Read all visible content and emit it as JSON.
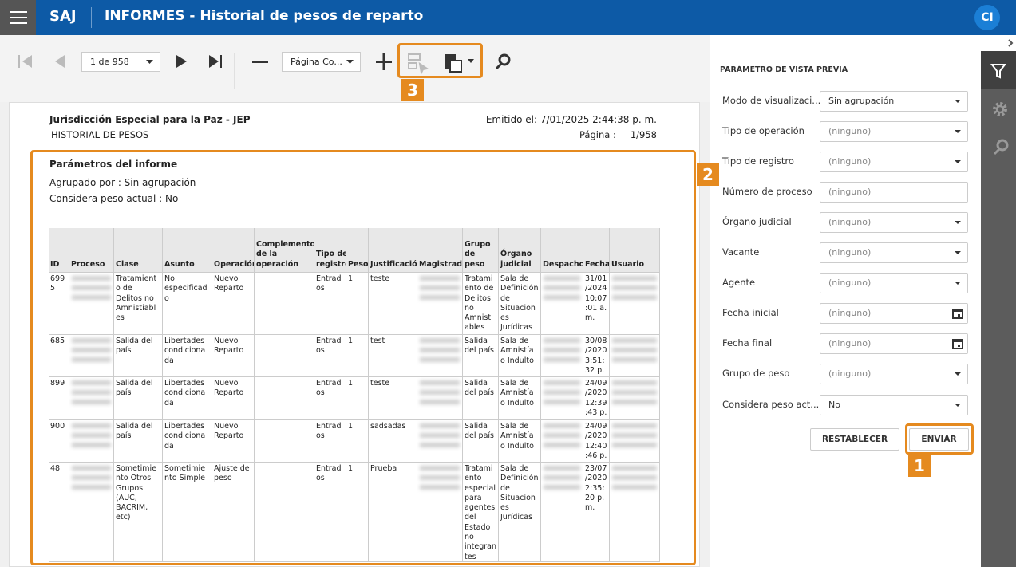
{
  "header": {
    "app": "SAJ",
    "title": "INFORMES - Historial de pesos de reparto",
    "user": "CI"
  },
  "toolbar": {
    "page": "1 de 958",
    "zoom": "Página Co...",
    "callout": "3"
  },
  "report": {
    "organization": "Jurisdicción Especial para la Paz - JEP",
    "name": "HISTORIAL DE PESOS",
    "issued": "Emitido el: 7/01/2025 2:44:38 p. m.",
    "page_label": "Página :",
    "page_value": "1/958",
    "parameters": {
      "title": "Parámetros del informe",
      "lines": [
        "Agrupado por : Sin agrupación",
        "Considera peso actual : No"
      ],
      "callout": "2"
    },
    "table": {
      "columns": [
        "ID",
        "Proceso",
        "Clase",
        "Asunto",
        "Operación",
        "Complemento de la operación",
        "Tipo de registro",
        "Peso",
        "Justificación",
        "Magistrado",
        "Grupo de peso",
        "Órgano judicial",
        "Despacho",
        "Fecha",
        "Usuario"
      ],
      "rows": [
        [
          6995,
          null,
          "Tratamiento de Delitos no Amnistiables",
          "No especificado",
          "Nuevo Reparto",
          null,
          "Entrados",
          1,
          "teste",
          null,
          "Tratamiento de Delitos no Amnistiables",
          "Sala de Definición de Situaciones Jurídicas",
          null,
          "31/01/2024 10:07:01 a. m.",
          null
        ],
        [
          685,
          null,
          "Salida del país",
          "Libertades condicionada",
          "Nuevo Reparto",
          null,
          "Entrados",
          1,
          "test",
          null,
          "Salida del país",
          "Sala de Amnistía o Indulto",
          null,
          "30/08/2020 3:51:32 p. m.",
          null
        ],
        [
          899,
          null,
          "Salida del país",
          "Libertades condicionada",
          "Nuevo Reparto",
          null,
          "Entrados",
          1,
          "teste",
          null,
          "Salida del país",
          "Sala de Amnistía o Indulto",
          null,
          "24/09/2020 12:39:43 p. m.",
          null
        ],
        [
          900,
          null,
          "Salida del país",
          "Libertades condicionada",
          "Nuevo Reparto",
          null,
          "Entrados",
          1,
          "sadsadas",
          null,
          "Salida del país",
          "Sala de Amnistía o Indulto",
          null,
          "24/09/2020 12:40:46 p. m.",
          null
        ],
        [
          48,
          null,
          "Sometimiento Otros Grupos (AUC, BACRIM, etc)",
          "Sometimiento Simple",
          "Ajuste de peso",
          null,
          "Entrados",
          1,
          "Prueba",
          null,
          "Tratamiento especial para agentes del Estado no integrantes",
          "Sala de Definición de Situaciones Jurídicas",
          null,
          "23/07/2020 2:35:20 p. m.",
          null
        ]
      ]
    }
  },
  "panel": {
    "title": "PARÁMETRO DE VISTA PREVIA",
    "fields": [
      {
        "label": "Modo de visualizaci...",
        "value": "Sin agrupación"
      },
      {
        "label": "Tipo de operación",
        "value": "(ninguno)"
      },
      {
        "label": "Tipo de registro",
        "value": "(ninguno)"
      },
      {
        "label": "Número de proceso",
        "value": "(ninguno)"
      },
      {
        "label": "Órgano judicial",
        "value": "(ninguno)"
      },
      {
        "label": "Vacante",
        "value": "(ninguno)"
      },
      {
        "label": "Agente",
        "value": "(ninguno)"
      },
      {
        "label": "Fecha inicial",
        "value": "(ninguno)"
      },
      {
        "label": "Fecha final",
        "value": "(ninguno)"
      },
      {
        "label": "Grupo de peso",
        "value": "(ninguno)"
      },
      {
        "label": "Considera peso act...",
        "value": "No"
      }
    ],
    "reset": "RESTABLECER",
    "submit": "ENVIAR",
    "callout": "1"
  }
}
